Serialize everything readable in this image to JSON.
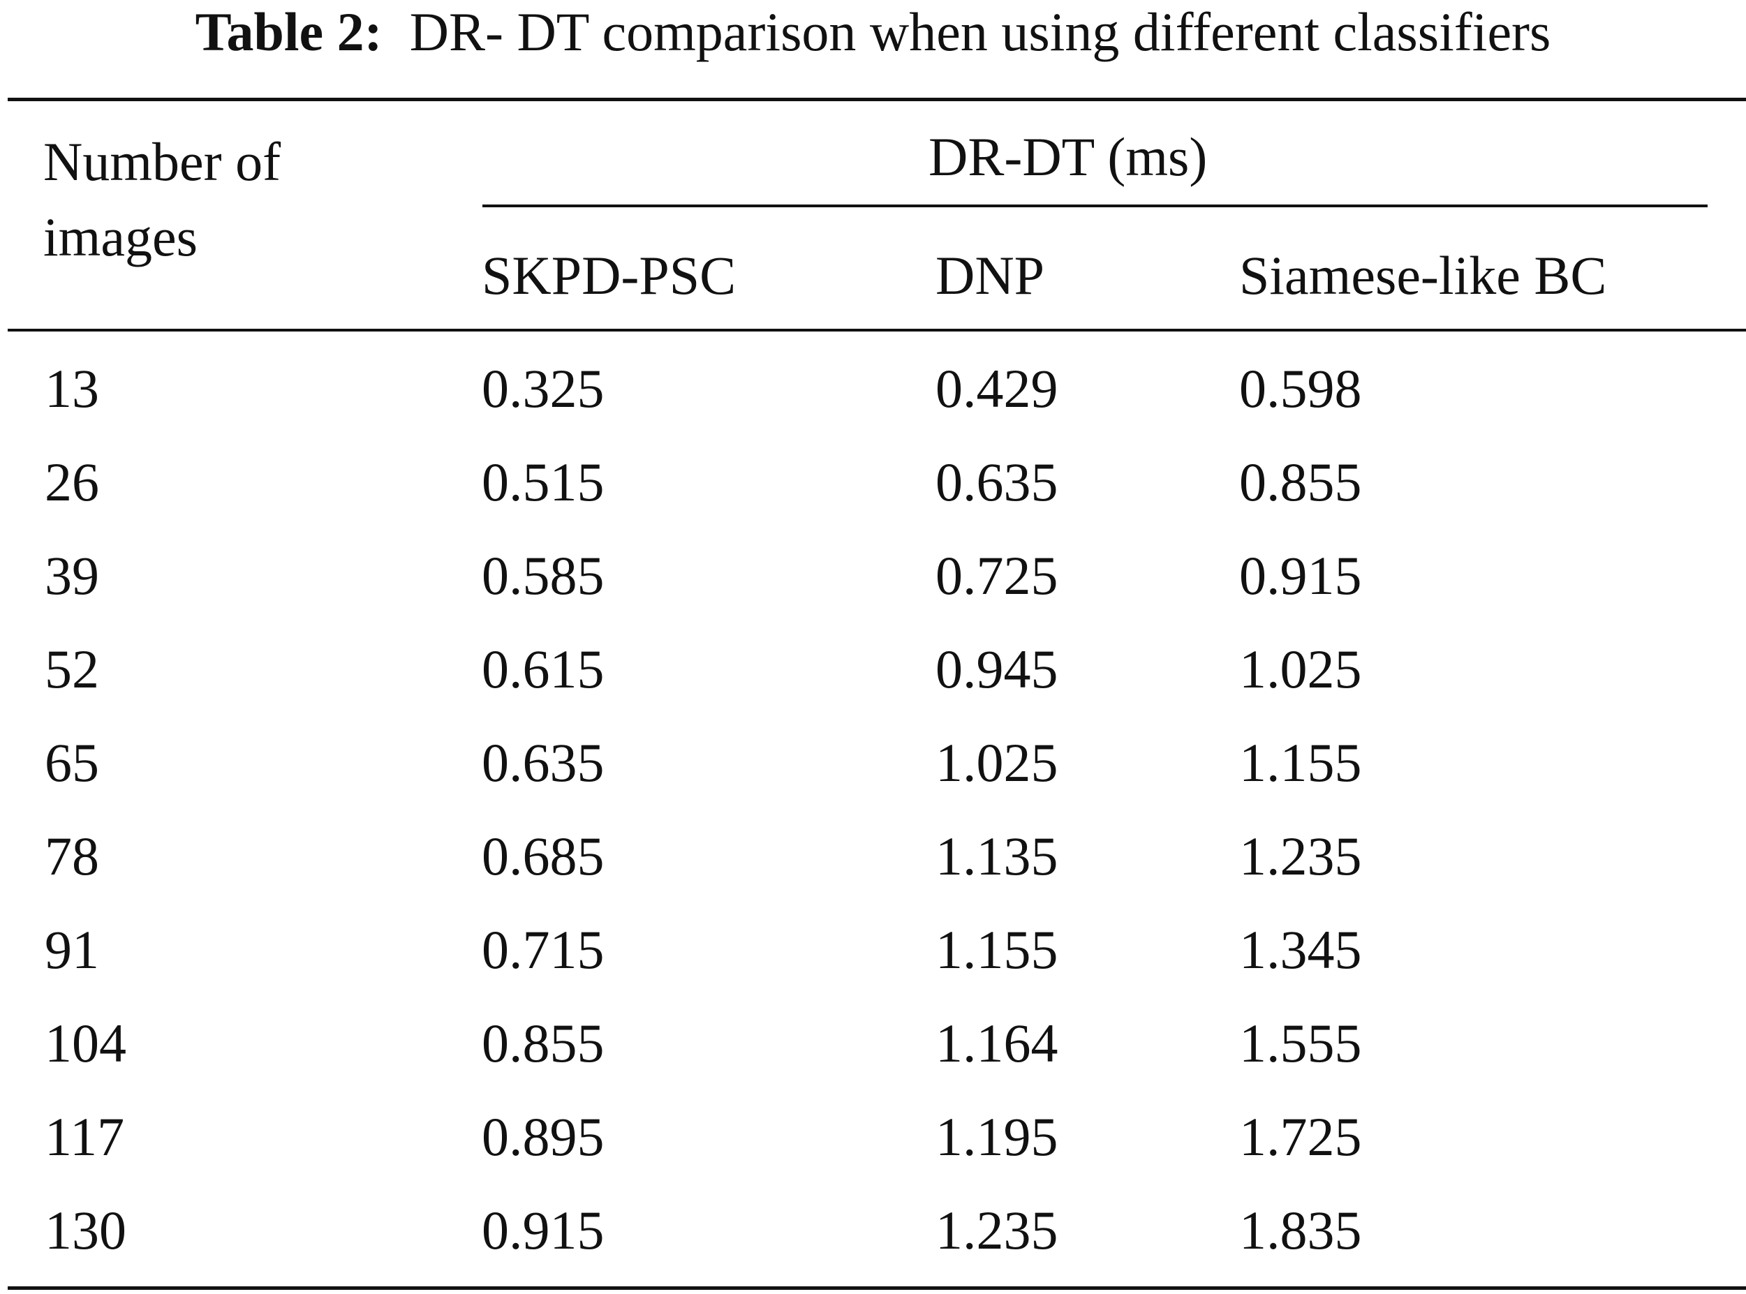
{
  "caption": {
    "label": "Table 2:",
    "text": "DR- DT comparison when using different classifiers"
  },
  "header": {
    "row_label_lines": [
      "Number of",
      "images"
    ],
    "group_label": "DR-DT (ms)",
    "columns": [
      "SKPD-PSC",
      "DNP",
      "Siamese-like BC"
    ]
  },
  "rows": [
    [
      "13",
      "0.325",
      "0.429",
      "0.598"
    ],
    [
      "26",
      "0.515",
      "0.635",
      "0.855"
    ],
    [
      "39",
      "0.585",
      "0.725",
      "0.915"
    ],
    [
      "52",
      "0.615",
      "0.945",
      "1.025"
    ],
    [
      "65",
      "0.635",
      "1.025",
      "1.155"
    ],
    [
      "78",
      "0.685",
      "1.135",
      "1.235"
    ],
    [
      "91",
      "0.715",
      "1.155",
      "1.345"
    ],
    [
      "104",
      "0.855",
      "1.164",
      "1.555"
    ],
    [
      "117",
      "0.895",
      "1.195",
      "1.725"
    ],
    [
      "130",
      "0.915",
      "1.235",
      "1.835"
    ]
  ]
}
